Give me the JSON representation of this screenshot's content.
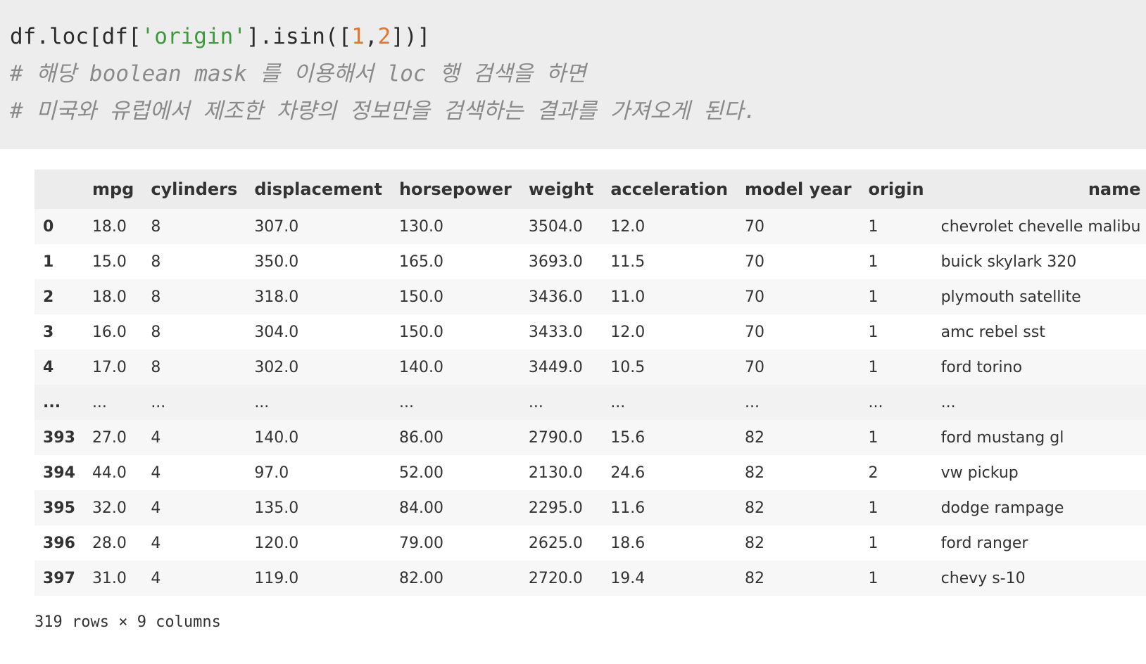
{
  "code_cell": {
    "line1": {
      "p1": "df.loc[df[",
      "s1": "'origin'",
      "p2": "].isin([",
      "n1": "1",
      "p3": ",",
      "n2": "2",
      "p4": "])]"
    },
    "comment1": "# 해당 boolean mask 를 이용해서 loc 행 검색을 하면",
    "comment2": "# 미국와 유럽에서 제조한 차량의 정보만을 검색하는 결과를 가져오게 된다."
  },
  "table": {
    "index_header": "",
    "columns": [
      "mpg",
      "cylinders",
      "displacement",
      "horsepower",
      "weight",
      "acceleration",
      "model year",
      "origin",
      "name"
    ],
    "rows": [
      {
        "index": "0",
        "cells": [
          "18.0",
          "8",
          "307.0",
          "130.0",
          "3504.0",
          "12.0",
          "70",
          "1",
          "chevrolet chevelle malibu"
        ]
      },
      {
        "index": "1",
        "cells": [
          "15.0",
          "8",
          "350.0",
          "165.0",
          "3693.0",
          "11.5",
          "70",
          "1",
          "buick skylark 320"
        ]
      },
      {
        "index": "2",
        "cells": [
          "18.0",
          "8",
          "318.0",
          "150.0",
          "3436.0",
          "11.0",
          "70",
          "1",
          "plymouth satellite"
        ]
      },
      {
        "index": "3",
        "cells": [
          "16.0",
          "8",
          "304.0",
          "150.0",
          "3433.0",
          "12.0",
          "70",
          "1",
          "amc rebel sst"
        ]
      },
      {
        "index": "4",
        "cells": [
          "17.0",
          "8",
          "302.0",
          "140.0",
          "3449.0",
          "10.5",
          "70",
          "1",
          "ford torino"
        ]
      },
      {
        "index": "...",
        "cells": [
          "...",
          "...",
          "...",
          "...",
          "...",
          "...",
          "...",
          "...",
          "..."
        ]
      },
      {
        "index": "393",
        "cells": [
          "27.0",
          "4",
          "140.0",
          "86.00",
          "2790.0",
          "15.6",
          "82",
          "1",
          "ford mustang gl"
        ]
      },
      {
        "index": "394",
        "cells": [
          "44.0",
          "4",
          "97.0",
          "52.00",
          "2130.0",
          "24.6",
          "82",
          "2",
          "vw pickup"
        ]
      },
      {
        "index": "395",
        "cells": [
          "32.0",
          "4",
          "135.0",
          "84.00",
          "2295.0",
          "11.6",
          "82",
          "1",
          "dodge rampage"
        ]
      },
      {
        "index": "396",
        "cells": [
          "28.0",
          "4",
          "120.0",
          "79.00",
          "2625.0",
          "18.6",
          "82",
          "1",
          "ford ranger"
        ]
      },
      {
        "index": "397",
        "cells": [
          "31.0",
          "4",
          "119.0",
          "82.00",
          "2720.0",
          "19.4",
          "82",
          "1",
          "chevy s-10"
        ]
      }
    ],
    "shape_text": "319 rows × 9 columns"
  },
  "colors": {
    "code_bg": "#ededed",
    "string": "#3c9a3c",
    "number": "#e3752e",
    "comment": "#8a8a8a"
  }
}
